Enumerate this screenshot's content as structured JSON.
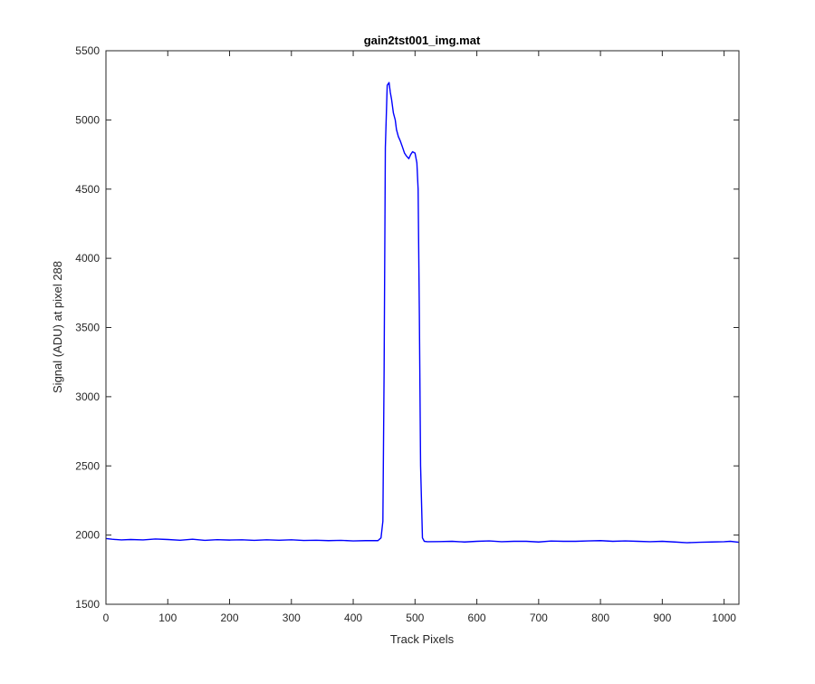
{
  "chart_data": {
    "type": "line",
    "title": "gain2tst001_img.mat",
    "xlabel": "Track Pixels",
    "ylabel": "Signal (ADU) at pixel 288",
    "xlim": [
      0,
      1024
    ],
    "ylim": [
      1500,
      5500
    ],
    "xticks": [
      "0",
      "100",
      "200",
      "300",
      "400",
      "500",
      "600",
      "700",
      "800",
      "900",
      "1000"
    ],
    "yticks": [
      "1500",
      "2000",
      "2500",
      "3000",
      "3500",
      "4000",
      "4500",
      "5000",
      "5500"
    ],
    "grid": false,
    "legend": "none",
    "series": [
      {
        "color": "#0000ff",
        "x": [
          0,
          10,
          25,
          40,
          60,
          80,
          100,
          120,
          140,
          160,
          180,
          200,
          220,
          240,
          260,
          280,
          300,
          320,
          340,
          360,
          380,
          400,
          420,
          440,
          445,
          448,
          450,
          452,
          455,
          458,
          460,
          462,
          465,
          468,
          470,
          473,
          476,
          480,
          483,
          486,
          490,
          493,
          496,
          500,
          503,
          505,
          507,
          509,
          512,
          515,
          520,
          540,
          560,
          580,
          600,
          620,
          640,
          660,
          680,
          700,
          720,
          740,
          760,
          780,
          800,
          820,
          840,
          860,
          880,
          900,
          920,
          940,
          960,
          980,
          1000,
          1010,
          1024
        ],
        "y": [
          1975,
          1970,
          1965,
          1968,
          1965,
          1972,
          1968,
          1963,
          1970,
          1962,
          1967,
          1964,
          1966,
          1962,
          1966,
          1963,
          1966,
          1961,
          1963,
          1960,
          1962,
          1958,
          1960,
          1960,
          1980,
          2100,
          3200,
          4800,
          5250,
          5270,
          5200,
          5150,
          5050,
          5000,
          4930,
          4880,
          4850,
          4800,
          4760,
          4740,
          4720,
          4750,
          4770,
          4760,
          4690,
          4500,
          3600,
          2500,
          1980,
          1955,
          1952,
          1953,
          1955,
          1950,
          1955,
          1958,
          1952,
          1955,
          1955,
          1950,
          1957,
          1955,
          1955,
          1958,
          1960,
          1955,
          1958,
          1955,
          1952,
          1955,
          1950,
          1945,
          1948,
          1950,
          1952,
          1955,
          1948
        ]
      }
    ]
  }
}
